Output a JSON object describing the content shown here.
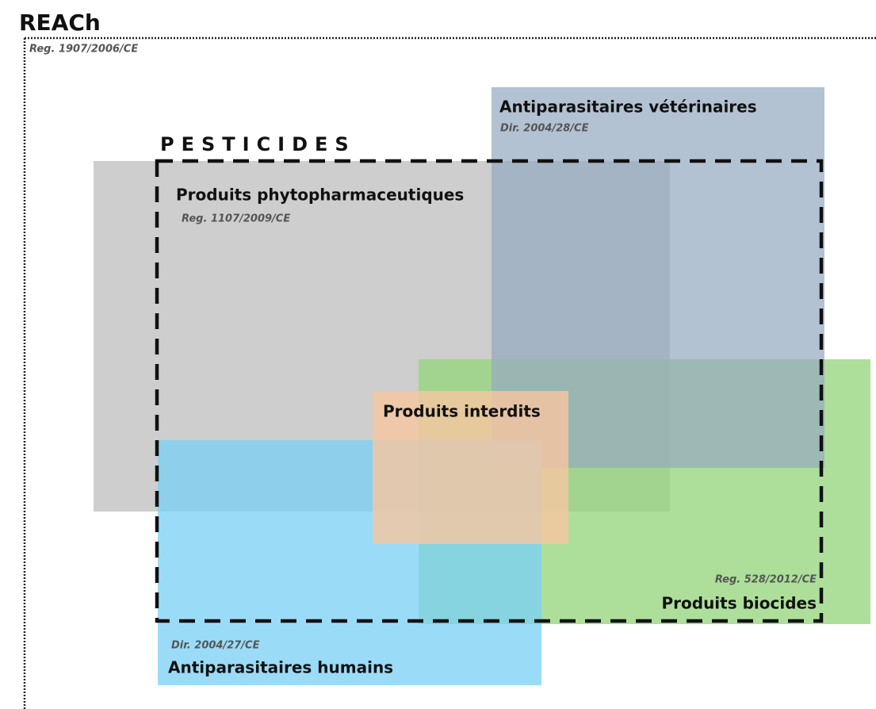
{
  "title": "REACh",
  "subtitle": "Reg. 1907/2006/CE",
  "group_label": "PESTICIDES",
  "nodes": [
    {
      "label": "Produits phytopharmaceutiques",
      "reference": "Reg. 1107/2009/CE"
    },
    {
      "label": "Antiparasitaires  vétérinaires",
      "reference": "Dir. 2004/28/CE"
    },
    {
      "label": "Produits biocides",
      "reference": "Reg. 528/2012/CE"
    },
    {
      "label": "Antiparasitaires humains",
      "reference": "Dir. 2004/27/CE"
    },
    {
      "label": "Produits interdits"
    }
  ]
}
